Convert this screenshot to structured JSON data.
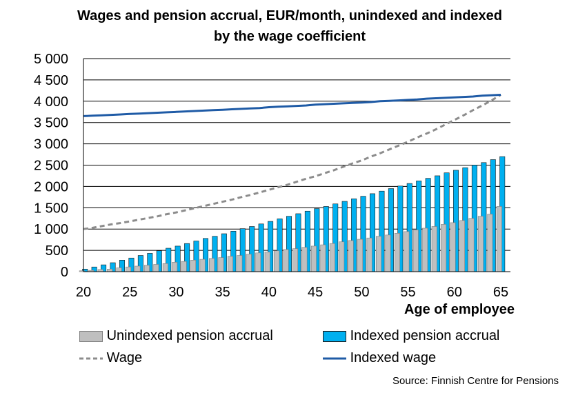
{
  "title_line1": "Wages and pension accrual, EUR/month, unindexed and indexed",
  "title_line2": "by the wage coefficient",
  "source": "Source: Finnish Centre for Pensions",
  "colors": {
    "unindexed": "#bfbfbf",
    "indexed": "#00b0f0",
    "wage": "#8c8c8c",
    "indexed_wage": "#1f5ba6"
  },
  "legend": {
    "unindexed": "Unindexed pension accrual",
    "indexed": "Indexed pension accrual",
    "wage": "Wage",
    "indexed_wage": "Indexed wage"
  },
  "chart_data": {
    "type": "bar",
    "title": "Wages and pension accrual, EUR/month, unindexed and indexed by the wage coefficient",
    "xlabel": "Age of employee",
    "ylabel": "",
    "ylim": [
      0,
      5000
    ],
    "ytick_labels": [
      "0",
      "500",
      "1 000",
      "1 500",
      "2 000",
      "2 500",
      "3 000",
      "3 500",
      "4 000",
      "4 500",
      "5 000"
    ],
    "xtick_labels": [
      "20",
      "25",
      "30",
      "35",
      "40",
      "45",
      "50",
      "55",
      "60",
      "65"
    ],
    "grid": true,
    "legend_position": "bottom",
    "categories": [
      20,
      21,
      22,
      23,
      24,
      25,
      26,
      27,
      28,
      29,
      30,
      31,
      32,
      33,
      34,
      35,
      36,
      37,
      38,
      39,
      40,
      41,
      42,
      43,
      44,
      45,
      46,
      47,
      48,
      49,
      50,
      51,
      52,
      53,
      54,
      55,
      56,
      57,
      58,
      59,
      60,
      61,
      62,
      63,
      64,
      65
    ],
    "series": [
      {
        "name": "Unindexed pension accrual",
        "kind": "bar",
        "values": [
          20,
          30,
          50,
          60,
          90,
          110,
          130,
          150,
          170,
          190,
          220,
          240,
          270,
          290,
          310,
          330,
          360,
          380,
          410,
          440,
          460,
          490,
          520,
          540,
          570,
          600,
          630,
          660,
          700,
          730,
          760,
          790,
          830,
          860,
          900,
          940,
          980,
          1020,
          1060,
          1110,
          1150,
          1200,
          1250,
          1300,
          1350,
          1530
        ]
      },
      {
        "name": "Indexed pension accrual",
        "kind": "bar",
        "values": [
          60,
          110,
          160,
          210,
          270,
          320,
          380,
          430,
          490,
          550,
          600,
          660,
          720,
          780,
          830,
          890,
          950,
          1010,
          1060,
          1120,
          1180,
          1240,
          1300,
          1360,
          1420,
          1480,
          1530,
          1590,
          1650,
          1710,
          1770,
          1830,
          1890,
          1950,
          2010,
          2070,
          2130,
          2190,
          2250,
          2320,
          2380,
          2440,
          2500,
          2560,
          2630,
          2700
        ]
      },
      {
        "name": "Wage",
        "kind": "line",
        "values": [
          1000,
          1030,
          1070,
          1110,
          1140,
          1180,
          1220,
          1260,
          1300,
          1350,
          1390,
          1440,
          1490,
          1540,
          1590,
          1640,
          1690,
          1750,
          1800,
          1860,
          1920,
          1980,
          2040,
          2110,
          2180,
          2240,
          2310,
          2380,
          2460,
          2540,
          2610,
          2700,
          2780,
          2870,
          2960,
          3050,
          3150,
          3240,
          3340,
          3450,
          3560,
          3670,
          3790,
          3900,
          4020,
          4150
        ]
      },
      {
        "name": "Indexed wage",
        "kind": "line",
        "values": [
          3650,
          3660,
          3670,
          3680,
          3690,
          3700,
          3710,
          3720,
          3730,
          3740,
          3750,
          3760,
          3770,
          3780,
          3790,
          3800,
          3810,
          3820,
          3830,
          3840,
          3860,
          3870,
          3880,
          3890,
          3900,
          3920,
          3930,
          3940,
          3950,
          3960,
          3970,
          3980,
          4000,
          4010,
          4020,
          4030,
          4040,
          4060,
          4070,
          4080,
          4090,
          4100,
          4110,
          4130,
          4140,
          4150
        ]
      }
    ]
  }
}
